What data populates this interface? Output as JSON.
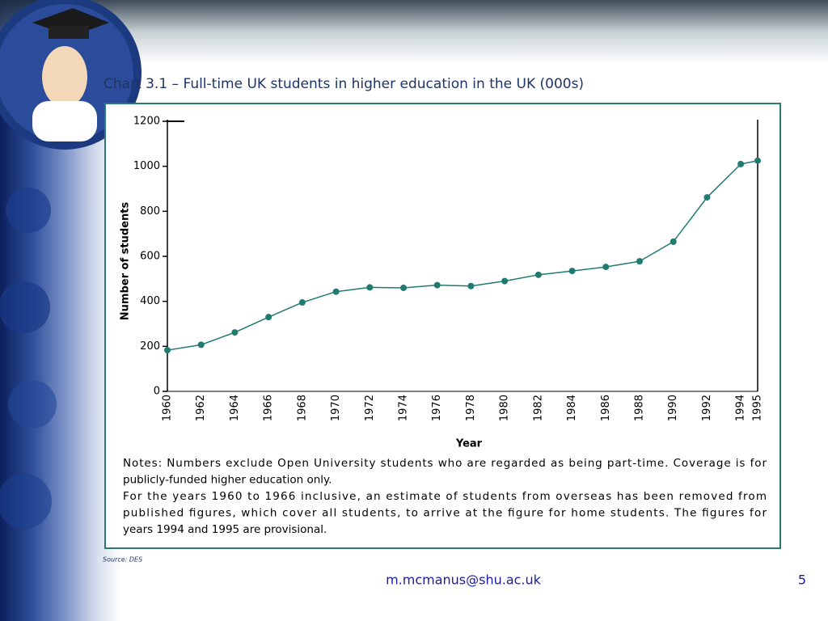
{
  "chart_data": {
    "type": "line",
    "title": "Chart 3.1 – Full-time UK students in higher education in the UK (000s)",
    "x_label": "Year",
    "y_label": "Number of students",
    "x": [
      1960,
      1962,
      1964,
      1966,
      1968,
      1970,
      1972,
      1974,
      1976,
      1978,
      1980,
      1982,
      1984,
      1986,
      1988,
      1990,
      1992,
      1994,
      1995
    ],
    "values": [
      183,
      207,
      262,
      330,
      395,
      443,
      462,
      460,
      472,
      468,
      490,
      518,
      535,
      553,
      578,
      665,
      862,
      1010,
      1025
    ],
    "color": "#1f7a70",
    "xlim": [
      1960,
      1995
    ],
    "xticks": [
      1960,
      1962,
      1964,
      1966,
      1968,
      1970,
      1972,
      1974,
      1976,
      1978,
      1980,
      1982,
      1984,
      1986,
      1988,
      1990,
      1992,
      1994,
      1995
    ],
    "ylim": [
      0,
      1200
    ],
    "yticks": [
      0,
      200,
      400,
      600,
      800,
      1000,
      1200
    ],
    "notes": [
      "Notes: Numbers exclude Open University students who are regarded as being part-time. Coverage is for",
      "publicly-funded higher education only.",
      "For the years 1960 to 1966 inclusive, an estimate of students from overseas has been removed from",
      "published figures, which cover all students, to arrive at the figure for home students. The figures for",
      "years 1994 and 1995 are provisional."
    ],
    "source": "Source: DES"
  },
  "footer": {
    "email": "m.mcmanus@shu.ac.uk",
    "page": "5"
  }
}
